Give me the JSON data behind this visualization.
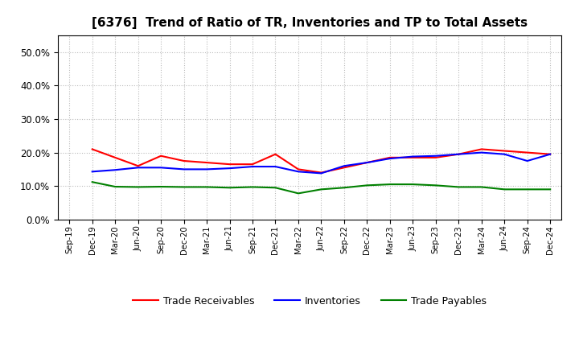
{
  "title": "[6376]  Trend of Ratio of TR, Inventories and TP to Total Assets",
  "x_labels": [
    "Sep-19",
    "Dec-19",
    "Mar-20",
    "Jun-20",
    "Sep-20",
    "Dec-20",
    "Mar-21",
    "Jun-21",
    "Sep-21",
    "Dec-21",
    "Mar-22",
    "Jun-22",
    "Sep-22",
    "Dec-22",
    "Mar-23",
    "Jun-23",
    "Sep-23",
    "Dec-23",
    "Mar-24",
    "Jun-24",
    "Sep-24",
    "Dec-24"
  ],
  "trade_receivables": [
    null,
    0.21,
    0.185,
    0.16,
    0.19,
    0.175,
    0.17,
    0.165,
    0.165,
    0.195,
    0.15,
    0.14,
    0.155,
    0.17,
    0.185,
    0.185,
    0.185,
    0.195,
    0.21,
    0.205,
    0.2,
    0.195
  ],
  "inventories": [
    null,
    0.143,
    0.148,
    0.155,
    0.155,
    0.15,
    0.15,
    0.153,
    0.158,
    0.158,
    0.143,
    0.138,
    0.16,
    0.17,
    0.182,
    0.188,
    0.19,
    0.195,
    0.2,
    0.195,
    0.175,
    0.195
  ],
  "trade_payables": [
    null,
    0.112,
    0.098,
    0.097,
    0.098,
    0.097,
    0.097,
    0.095,
    0.097,
    0.095,
    0.078,
    0.09,
    0.095,
    0.102,
    0.105,
    0.105,
    0.102,
    0.097,
    0.097,
    0.09,
    0.09,
    0.09
  ],
  "ylim": [
    0.0,
    0.55
  ],
  "yticks": [
    0.0,
    0.1,
    0.2,
    0.3,
    0.4,
    0.5
  ],
  "color_tr": "#ff0000",
  "color_inv": "#0000ff",
  "color_tp": "#008000",
  "legend_labels": [
    "Trade Receivables",
    "Inventories",
    "Trade Payables"
  ],
  "line_width": 1.5,
  "background_color": "#ffffff",
  "grid_color": "#bbbbbb"
}
